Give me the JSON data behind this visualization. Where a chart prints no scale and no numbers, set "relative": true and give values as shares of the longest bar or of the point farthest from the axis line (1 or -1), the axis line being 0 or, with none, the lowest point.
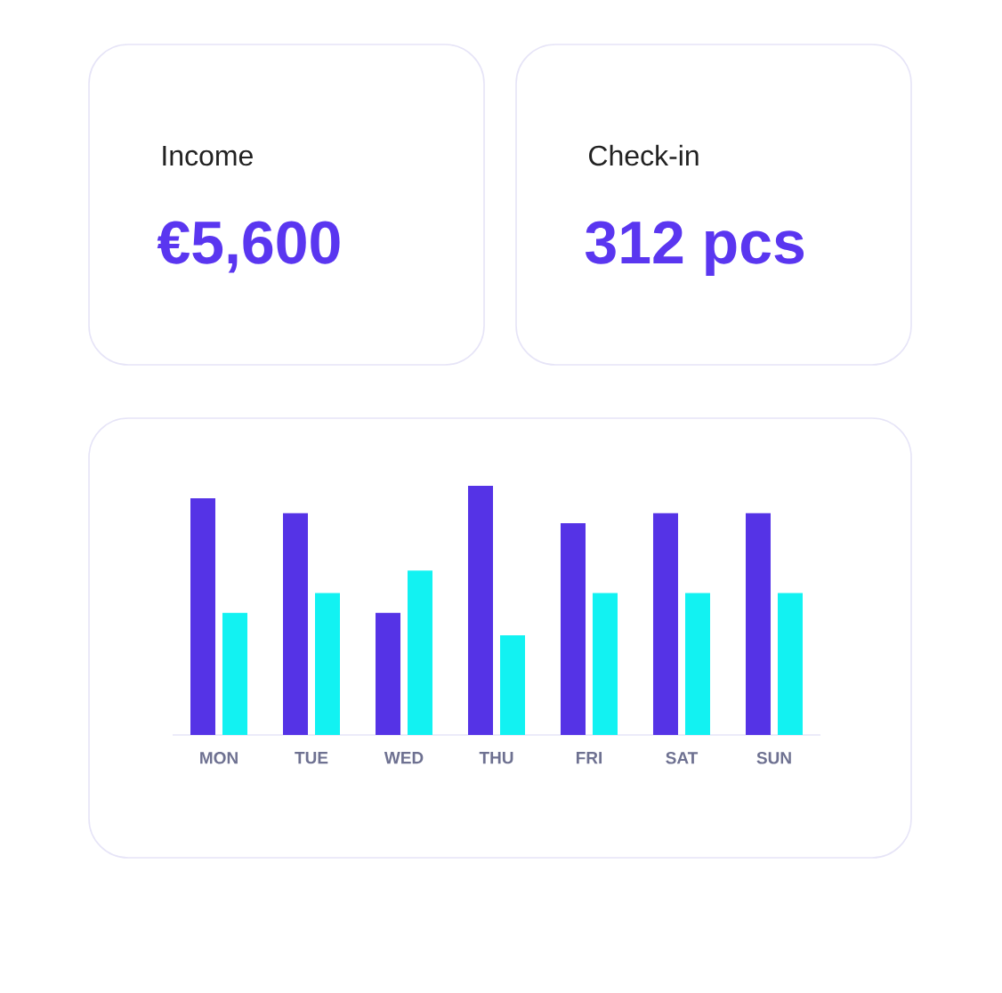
{
  "chart_data": [
    {
      "type": "other",
      "title": "Income",
      "annotations": [
        "€5,600"
      ]
    },
    {
      "type": "other",
      "title": "Check-in",
      "annotations": [
        "312 pcs"
      ]
    },
    {
      "type": "bar",
      "relative": true,
      "categories": [
        "MON",
        "TUE",
        "WED",
        "THU",
        "FRI",
        "SAT",
        "SUN"
      ],
      "series": [
        {
          "color": "#5533e6",
          "values": [
            0.95,
            0.89,
            0.49,
            1,
            0.85,
            0.89,
            0.89
          ]
        },
        {
          "color": "#12f2f2",
          "values": [
            0.49,
            0.57,
            0.66,
            0.4,
            0.57,
            0.57,
            0.57
          ]
        }
      ]
    }
  ]
}
